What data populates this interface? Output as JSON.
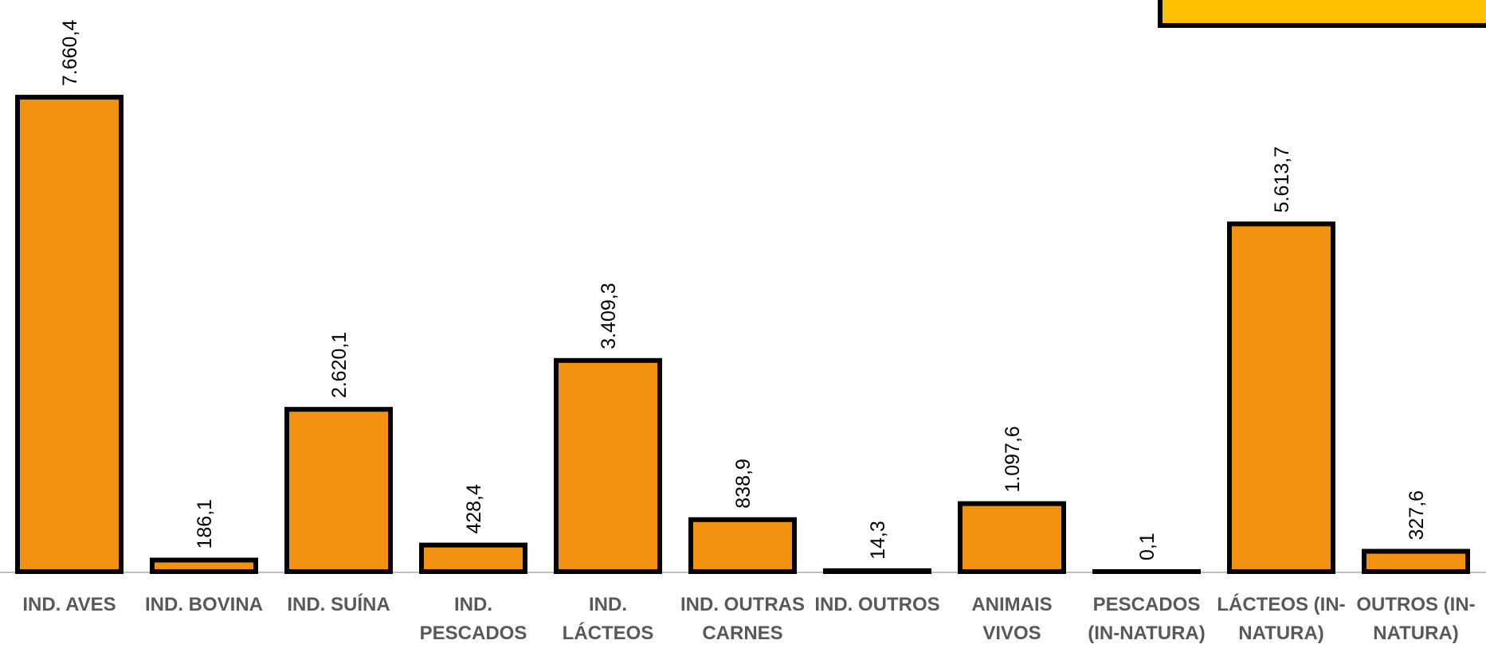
{
  "chart_data": {
    "type": "bar",
    "categories": [
      "IND. AVES",
      "IND. BOVINA",
      "IND. SUÍNA",
      "IND. PESCADOS",
      "IND. LÁCTEOS",
      "IND. OUTRAS CARNES",
      "IND. OUTROS",
      "ANIMAIS VIVOS",
      "PESCADOS (IN-NATURA)",
      "LÁCTEOS (IN-NATURA)",
      "OUTROS (IN-NATURA)"
    ],
    "values": [
      7660.4,
      186.1,
      2620.1,
      428.4,
      3409.3,
      838.9,
      14.3,
      1097.6,
      0.1,
      5613.7,
      327.6
    ],
    "value_labels": [
      "7.660,4",
      "186,1",
      "2.620,1",
      "428,4",
      "3.409,3",
      "838,9",
      "14,3",
      "1.097,6",
      "0,1",
      "5.613,7",
      "327,6"
    ],
    "color": "#f39110",
    "ylim": [
      0,
      9230
    ]
  }
}
